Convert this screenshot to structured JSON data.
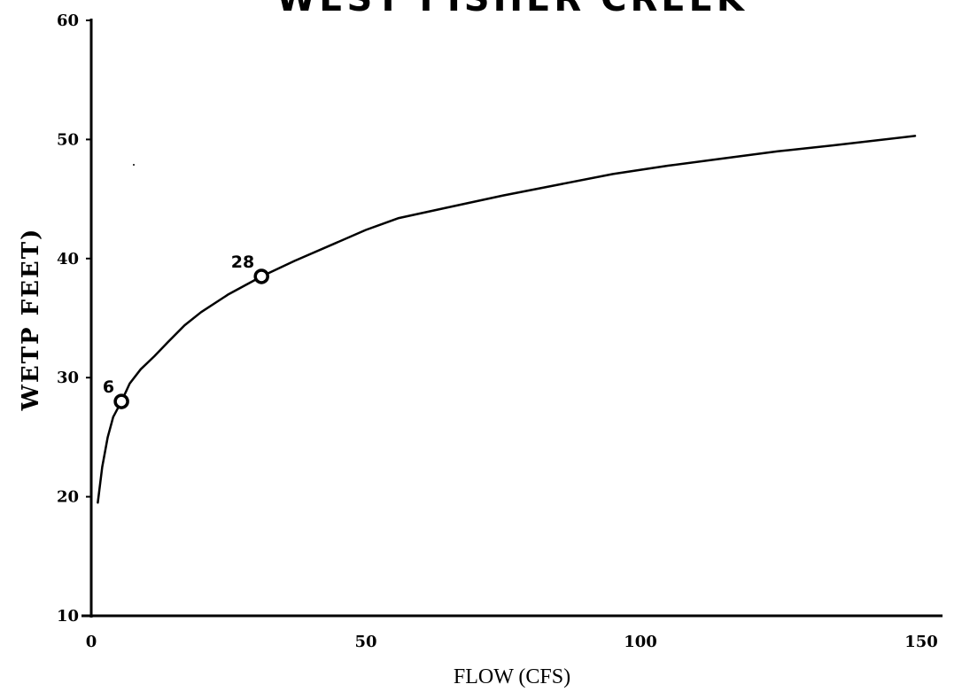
{
  "chart_data": {
    "type": "line",
    "title": "WEST FISHER CREEK",
    "xlabel": "FLOW (CFS)",
    "ylabel": "WETP FEET)",
    "xlim": [
      0,
      150
    ],
    "ylim": [
      10,
      60
    ],
    "x_ticks": [
      "0",
      "50",
      "100",
      "150"
    ],
    "y_ticks": [
      "10",
      "20",
      "30",
      "40",
      "50",
      "60"
    ],
    "grid": false,
    "series": [
      {
        "x": [
          1.2,
          2,
          3,
          4,
          5.5,
          7,
          9,
          11.5,
          14,
          17,
          20,
          25,
          31,
          37,
          44,
          50,
          56,
          65,
          75,
          85,
          95,
          105,
          115,
          125,
          135,
          150
        ],
        "y": [
          19.5,
          22.5,
          25,
          26.7,
          28,
          29.5,
          30.7,
          31.8,
          33,
          34.4,
          35.5,
          37,
          38.5,
          39.8,
          41.2,
          42.4,
          43.4,
          44.3,
          45.3,
          46.2,
          47.1,
          47.8,
          48.4,
          49,
          49.5,
          50.3
        ]
      }
    ],
    "points": [
      {
        "label": "6",
        "x": 5.5,
        "y": 28
      },
      {
        "label": "28",
        "x": 31,
        "y": 38.5
      }
    ]
  }
}
